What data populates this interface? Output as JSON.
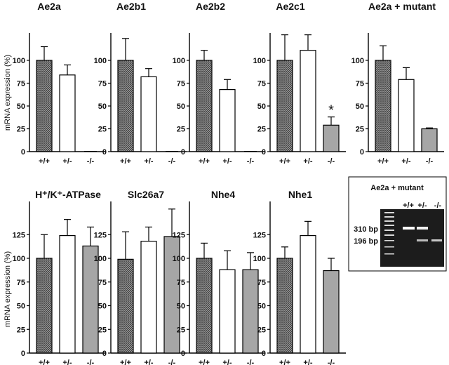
{
  "y_axis_label": "mRNA expression (%)",
  "genotypes": [
    "+/+",
    "+/-",
    "-/-"
  ],
  "colors": {
    "wildtype_fill": "crosshatch-gray",
    "het_fill": "#ffffff",
    "ko_fill": "#a6a6a6",
    "axis": "#000000"
  },
  "chart_data": [
    {
      "type": "bar",
      "title": "Ae2a",
      "categories": [
        "+/+",
        "+/-",
        "-/-"
      ],
      "values": [
        100,
        84,
        0
      ],
      "error": [
        15,
        11,
        0
      ],
      "ylim": [
        0,
        130
      ],
      "yticks": [
        0,
        25,
        50,
        75,
        100
      ],
      "significance": [
        null,
        null,
        null
      ]
    },
    {
      "type": "bar",
      "title": "Ae2b1",
      "categories": [
        "+/+",
        "+/-",
        "-/-"
      ],
      "values": [
        100,
        82,
        0
      ],
      "error": [
        24,
        9,
        0
      ],
      "ylim": [
        0,
        130
      ],
      "yticks": [
        0,
        25,
        50,
        75,
        100
      ],
      "significance": [
        null,
        null,
        null
      ]
    },
    {
      "type": "bar",
      "title": "Ae2b2",
      "categories": [
        "+/+",
        "+/-",
        "-/-"
      ],
      "values": [
        100,
        68,
        0
      ],
      "error": [
        11,
        11,
        0
      ],
      "ylim": [
        0,
        130
      ],
      "yticks": [
        0,
        25,
        50,
        75,
        100
      ],
      "significance": [
        null,
        null,
        null
      ]
    },
    {
      "type": "bar",
      "title": "Ae2c1",
      "categories": [
        "+/+",
        "+/-",
        "-/-"
      ],
      "values": [
        100,
        111,
        29
      ],
      "error": [
        28,
        17,
        9
      ],
      "ylim": [
        0,
        130
      ],
      "yticks": [
        0,
        25,
        50,
        75,
        100
      ],
      "significance": [
        null,
        null,
        "*"
      ]
    },
    {
      "type": "bar",
      "title": "Ae2a + mutant",
      "categories": [
        "+/+",
        "+/-",
        "-/-"
      ],
      "values": [
        100,
        79,
        25
      ],
      "error": [
        16,
        13,
        1
      ],
      "ylim": [
        0,
        130
      ],
      "yticks": [
        0,
        25,
        50,
        75,
        100
      ],
      "significance": [
        null,
        null,
        null
      ]
    },
    {
      "type": "bar",
      "title": "H⁺/K⁺-ATPase",
      "categories": [
        "+/+",
        "+/-",
        "-/-"
      ],
      "values": [
        100,
        124,
        113
      ],
      "error": [
        25,
        17,
        20
      ],
      "ylim": [
        0,
        160
      ],
      "yticks": [
        0,
        25,
        50,
        75,
        100,
        125
      ],
      "significance": [
        null,
        null,
        null
      ]
    },
    {
      "type": "bar",
      "title": "Slc26a7",
      "categories": [
        "+/+",
        "+/-",
        "-/-"
      ],
      "values": [
        99,
        118,
        123
      ],
      "error": [
        29,
        15,
        29
      ],
      "ylim": [
        0,
        160
      ],
      "yticks": [
        0,
        25,
        50,
        75,
        100,
        125
      ],
      "significance": [
        null,
        null,
        null
      ]
    },
    {
      "type": "bar",
      "title": "Nhe4",
      "categories": [
        "+/+",
        "+/-",
        "-/-"
      ],
      "values": [
        100,
        88,
        88
      ],
      "error": [
        16,
        20,
        18
      ],
      "ylim": [
        0,
        160
      ],
      "yticks": [
        0,
        25,
        50,
        75,
        100,
        125
      ],
      "significance": [
        null,
        null,
        null
      ]
    },
    {
      "type": "bar",
      "title": "Nhe1",
      "categories": [
        "+/+",
        "+/-",
        "-/-"
      ],
      "values": [
        100,
        124,
        87
      ],
      "error": [
        12,
        15,
        13
      ],
      "ylim": [
        0,
        160
      ],
      "yticks": [
        0,
        25,
        50,
        75,
        100,
        125
      ],
      "significance": [
        null,
        null,
        null
      ]
    }
  ],
  "gel": {
    "title": "Ae2a + mutant",
    "lanes": [
      "+/+",
      "+/-",
      "-/-"
    ],
    "bands": [
      "310 bp",
      "196 bp"
    ]
  }
}
